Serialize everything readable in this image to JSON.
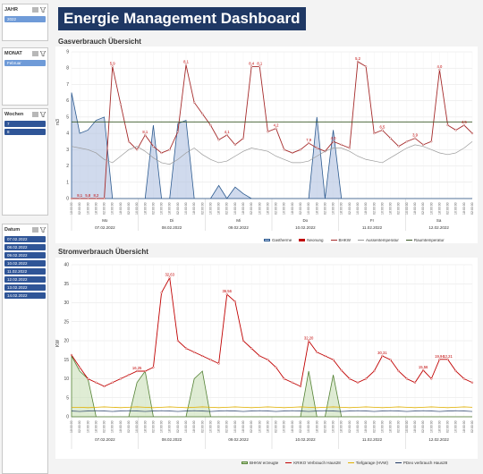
{
  "title": "Energie Management Dashboard",
  "slicers": {
    "jahr": {
      "label": "JAHR",
      "items": [
        "2022"
      ]
    },
    "monat": {
      "label": "MONAT",
      "items": [
        "Februar"
      ]
    },
    "wochen": {
      "label": "Wochen",
      "items": [
        "7",
        "8"
      ]
    },
    "datum": {
      "label": "Datum",
      "items": [
        "07.02.2022",
        "08.02.2022",
        "09.02.2022",
        "10.02.2022",
        "11.02.2022",
        "12.02.2022",
        "13.02.2022",
        "14.02.2022"
      ]
    }
  },
  "gas": {
    "heading": "Gasverbrauch Übersicht",
    "ylabel": "m3",
    "yticks": [
      "0",
      "1",
      "2",
      "3",
      "4",
      "5",
      "6",
      "7",
      "8",
      "9"
    ],
    "days": [
      "Mo",
      "Di",
      "Mi",
      "Do",
      "Fr",
      "Sa"
    ],
    "dates": [
      "07.02.2022",
      "08.02.2022",
      "09.02.2022",
      "10.02.2022",
      "11.02.2022",
      "12.02.2022"
    ],
    "legend": [
      "Gastherme",
      "Neonung",
      "BHKW",
      "Aussentemperatur",
      "Raumtemperatur"
    ],
    "labels": [
      "8,1",
      "5,8",
      "8,2",
      "5,9",
      "8,1",
      "8,1",
      "4,1",
      "8,4",
      "8,1",
      "4,2",
      "7,9",
      "4,0",
      "5,2",
      "6,5",
      "3,9",
      "4,0",
      "4,5",
      "4,2",
      "4,5",
      "2,5"
    ]
  },
  "strom": {
    "heading": "Stromverbrauch Übersicht",
    "ylabel": "KW",
    "yticks": [
      "0",
      "5",
      "10",
      "15",
      "20",
      "25",
      "30",
      "35",
      "40"
    ],
    "dates": [
      "07.02.2022",
      "08.02.2022",
      "09.02.2022",
      "10.02.2022",
      "11.02.2022",
      "12.02.2022"
    ],
    "legend": [
      "BHKW erzeugte",
      "KRIKO Verbrauch Haus28",
      "Tiefgarage (HVW)",
      "PDeo verbrauch Haus28"
    ],
    "labels": [
      "16,25",
      "32,63",
      "36,56",
      "32,20",
      "30,31",
      "15,56",
      "19,94",
      "12,21",
      "12,26",
      "15,10",
      "15,10"
    ]
  },
  "chart_data": [
    {
      "type": "line",
      "title": "Gasverbrauch Übersicht",
      "ylabel": "m3",
      "ylim": [
        0,
        9
      ],
      "series": [
        {
          "name": "Gastherme",
          "values": [
            6.5,
            4,
            4.2,
            4.8,
            5,
            0,
            0,
            0,
            0,
            0,
            4.5,
            0,
            0,
            4.6,
            4.8,
            0,
            0,
            0,
            0.8,
            0,
            0.7,
            0.3,
            0,
            0,
            0,
            0,
            0,
            0,
            0,
            0,
            5,
            0,
            4.2,
            0,
            0,
            0,
            0,
            0,
            0,
            0,
            0,
            0,
            0,
            0,
            0,
            0,
            0,
            0,
            0,
            0
          ]
        },
        {
          "name": "BHKW",
          "values": [
            0,
            0,
            0,
            0,
            0,
            8.1,
            5.8,
            3.5,
            3,
            3.9,
            3.2,
            2.8,
            3,
            4.1,
            8.2,
            5.9,
            5.2,
            4.5,
            3.6,
            3.9,
            3.3,
            3.7,
            8.1,
            8.1,
            4.1,
            4.3,
            3,
            2.8,
            3,
            3.4,
            3.1,
            2.9,
            3.5,
            3.3,
            3.1,
            8.4,
            8.1,
            4,
            4.2,
            3.7,
            3.2,
            3.5,
            3.7,
            3.3,
            3.5,
            7.9,
            4.5,
            4.2,
            4.5,
            4
          ]
        },
        {
          "name": "Aussentemperatur",
          "values": [
            3.2,
            3.1,
            3,
            2.8,
            2.4,
            2.2,
            2.6,
            3,
            3.2,
            2.9,
            2.5,
            2.2,
            2.1,
            2.4,
            2.8,
            3.1,
            2.7,
            2.4,
            2.2,
            2.3,
            2.6,
            2.9,
            3.1,
            3,
            2.9,
            2.6,
            2.4,
            2.2,
            2.2,
            2.3,
            2.6,
            2.9,
            3.1,
            3.1,
            2.9,
            2.6,
            2.4,
            2.3,
            2.2,
            2.5,
            2.8,
            3.1,
            3.3,
            3.2,
            3,
            2.8,
            2.7,
            2.8,
            3.1,
            3.5
          ]
        },
        {
          "name": "Raumtemperatur",
          "values": [
            4.7,
            4.7,
            4.7,
            4.7,
            4.7,
            4.7,
            4.7,
            4.7,
            4.7,
            4.7,
            4.7,
            4.7,
            4.7,
            4.7,
            4.7,
            4.7,
            4.7,
            4.7,
            4.7,
            4.7,
            4.7,
            4.7,
            4.7,
            4.7,
            4.7,
            4.7,
            4.7,
            4.7,
            4.7,
            4.7,
            4.7,
            4.7,
            4.7,
            4.7,
            4.7,
            4.7,
            4.7,
            4.7,
            4.7,
            4.7,
            4.7,
            4.7,
            4.7,
            4.7,
            4.7,
            4.7,
            4.7,
            4.7,
            4.7,
            4.7
          ]
        }
      ]
    },
    {
      "type": "line",
      "title": "Stromverbrauch Übersicht",
      "ylabel": "KW",
      "ylim": [
        0,
        40
      ],
      "series": [
        {
          "name": "BHKW erzeugte",
          "values": [
            16,
            12,
            10,
            0,
            0,
            0,
            0,
            0,
            9,
            12,
            0,
            0,
            0,
            0,
            0,
            10,
            12,
            0,
            0,
            0,
            0,
            0,
            0,
            0,
            0,
            0,
            0,
            0,
            0,
            12,
            0,
            0,
            11,
            0,
            0,
            0,
            0,
            0,
            0,
            0,
            0,
            0,
            0,
            0,
            0,
            0,
            0,
            0,
            0,
            0
          ]
        },
        {
          "name": "KRIKO Verbrauch Haus28",
          "values": [
            16.25,
            13,
            10,
            9,
            8,
            9,
            10,
            11,
            12,
            12,
            13,
            32.63,
            36.56,
            20,
            18,
            17,
            16,
            15,
            14,
            32.2,
            30.31,
            20,
            18,
            16,
            15,
            13,
            10,
            9,
            8,
            19.94,
            17,
            16,
            15,
            12.21,
            10,
            9,
            10,
            12,
            16,
            15,
            12,
            10,
            9,
            12.26,
            10,
            15.1,
            15.1,
            12,
            10,
            9
          ]
        },
        {
          "name": "Tiefgarage (HVW)",
          "values": [
            2.5,
            2.5,
            2.4,
            2.5,
            2.6,
            2.5,
            2.4,
            2.5,
            2.6,
            2.5,
            2.4,
            2.5,
            2.6,
            2.5,
            2.4,
            2.5,
            2.6,
            2.5,
            2.4,
            2.5,
            2.6,
            2.5,
            2.4,
            2.5,
            2.6,
            2.5,
            2.4,
            2.5,
            2.6,
            2.5,
            2.4,
            2.5,
            2.6,
            2.5,
            2.4,
            2.5,
            2.6,
            2.5,
            2.4,
            2.5,
            2.6,
            2.5,
            2.4,
            2.5,
            2.6,
            2.5,
            2.4,
            2.5,
            2.6,
            2.5
          ]
        },
        {
          "name": "PDeo verbrauch Haus28",
          "values": [
            1.5,
            1.4,
            1.5,
            1.6,
            1.5,
            1.4,
            1.5,
            1.6,
            1.5,
            1.4,
            1.5,
            1.6,
            1.5,
            1.4,
            1.5,
            1.6,
            1.5,
            1.4,
            1.5,
            1.6,
            1.5,
            1.4,
            1.5,
            1.6,
            1.5,
            1.4,
            1.5,
            1.6,
            1.5,
            1.4,
            1.5,
            1.6,
            1.5,
            1.4,
            1.5,
            1.6,
            1.5,
            1.4,
            1.5,
            1.6,
            1.5,
            1.4,
            1.5,
            1.6,
            1.5,
            1.4,
            1.5,
            1.6,
            1.5,
            1.4
          ]
        }
      ]
    }
  ]
}
